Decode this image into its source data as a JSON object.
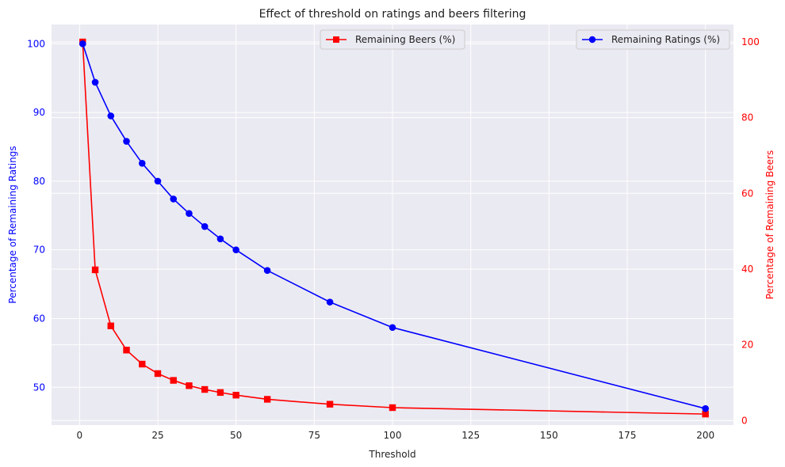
{
  "chart_data": {
    "type": "line",
    "title": "Effect of threshold on ratings and beers filtering",
    "xlabel": "Threshold",
    "ylabel_left": "Percentage of Remaining Ratings",
    "ylabel_right": "Percentage of Remaining Beers",
    "xlim": [
      -8.95,
      208.95
    ],
    "ylim_left": [
      44.5,
      102.8
    ],
    "ylim_right": [
      -1.2,
      104.6
    ],
    "x_ticks": [
      0,
      25,
      50,
      75,
      100,
      125,
      150,
      175,
      200
    ],
    "y_ticks_left": [
      50,
      60,
      70,
      80,
      90,
      100
    ],
    "y_ticks_right": [
      0,
      20,
      40,
      60,
      80,
      100
    ],
    "grid": true,
    "series": [
      {
        "name": "Remaining Ratings (%)",
        "axis": "left",
        "color": "#0000ff",
        "marker": "circle",
        "legend": "top-right",
        "x": [
          1,
          5,
          10,
          15,
          20,
          25,
          30,
          35,
          40,
          45,
          50,
          60,
          80,
          100,
          200
        ],
        "y": [
          100,
          94.4,
          89.5,
          85.8,
          82.6,
          80.0,
          77.4,
          75.3,
          73.4,
          71.6,
          70.0,
          67.0,
          62.4,
          58.7,
          46.9
        ]
      },
      {
        "name": "Remaining Beers (%)",
        "axis": "right",
        "color": "#ff0000",
        "marker": "square",
        "legend": "top-center",
        "x": [
          1,
          5,
          10,
          15,
          20,
          25,
          30,
          35,
          40,
          45,
          50,
          60,
          80,
          100,
          200
        ],
        "y": [
          100,
          39.8,
          25.0,
          18.6,
          14.9,
          12.4,
          10.6,
          9.2,
          8.2,
          7.4,
          6.7,
          5.6,
          4.3,
          3.4,
          1.7
        ]
      }
    ]
  }
}
